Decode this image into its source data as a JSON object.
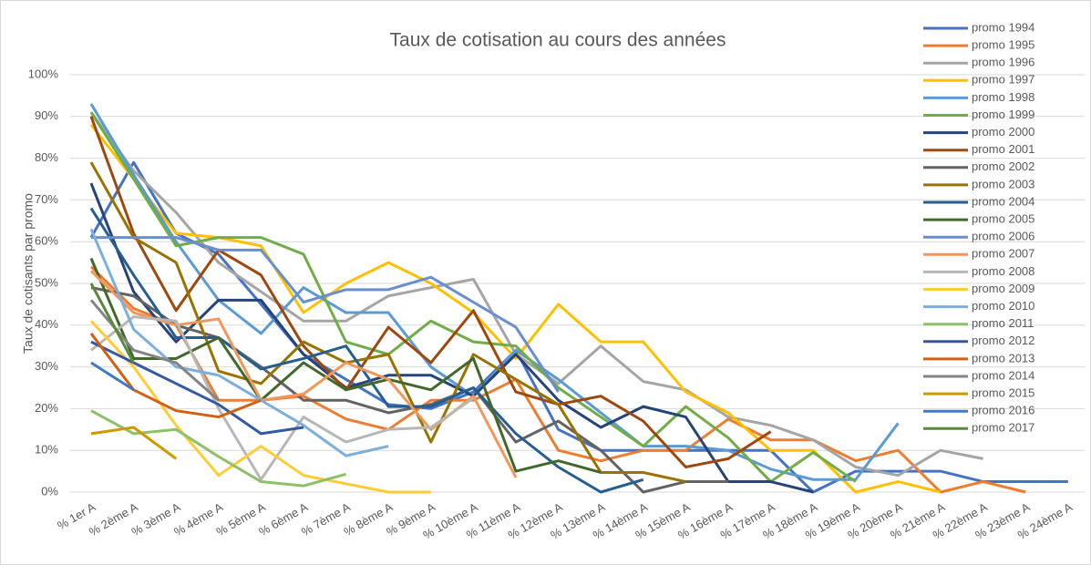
{
  "chart_data": {
    "type": "line",
    "title": "Taux de cotisation au cours des années",
    "y_label": "Taux de cotisants par promo",
    "categories": [
      "% 1er A",
      "% 2ème A",
      "% 3ème A",
      "% 4ème A",
      "% 5ème A",
      "% 6ème A",
      "% 7ème A",
      "% 8ème A",
      "% 9ème A",
      "% 10ème A",
      "% 11ème A",
      "% 12ème A",
      "% 13ème A",
      "% 14ème A",
      "% 15ème A",
      "% 16ème A",
      "% 17ème A",
      "% 18ème A",
      "% 19ème A",
      "% 20ème A",
      "% 21ème A",
      "% 22ème A",
      "% 23ème A",
      "% 24ème A"
    ],
    "ylim": [
      0,
      100
    ],
    "yticks": [
      {
        "value": 0,
        "label": "0%"
      },
      {
        "value": 10,
        "label": "10%"
      },
      {
        "value": 20,
        "label": "20%"
      },
      {
        "value": 30,
        "label": "30%"
      },
      {
        "value": 40,
        "label": "40%"
      },
      {
        "value": 50,
        "label": "50%"
      },
      {
        "value": 60,
        "label": "60%"
      },
      {
        "value": 70,
        "label": "70%"
      },
      {
        "value": 80,
        "label": "80%"
      },
      {
        "value": 90,
        "label": "90%"
      },
      {
        "value": 100,
        "label": "100%"
      }
    ],
    "grid": true,
    "legend": "right",
    "series": [
      {
        "name": "promo 1994",
        "color": "#4472c4",
        "values": [
          61,
          79,
          62,
          57,
          45,
          33,
          27,
          21,
          20,
          24,
          34,
          15,
          10,
          10,
          10,
          10,
          10,
          0,
          5,
          5,
          5,
          2.5,
          2.5,
          2.5
        ]
      },
      {
        "name": "promo 1995",
        "color": "#ed7d31",
        "values": [
          54,
          44,
          40,
          22,
          22,
          23,
          17.5,
          15,
          22,
          22,
          27,
          10,
          7.5,
          10,
          10,
          17.5,
          12.5,
          12.5,
          7.5,
          10,
          0,
          2.5,
          0,
          null
        ]
      },
      {
        "name": "promo 1996",
        "color": "#a5a5a5",
        "values": [
          91,
          77,
          67,
          55,
          48,
          41,
          41,
          47,
          49,
          51,
          33,
          26,
          35,
          26.5,
          24.5,
          18,
          16,
          12.5,
          6,
          4,
          10,
          8,
          null,
          null
        ]
      },
      {
        "name": "promo 1997",
        "color": "#ffc000",
        "values": [
          88,
          75,
          62,
          61,
          59,
          43,
          50,
          55,
          50,
          43,
          32,
          45,
          36,
          36,
          24,
          19,
          10,
          10,
          0,
          2.5,
          0,
          null,
          null,
          null
        ]
      },
      {
        "name": "promo 1998",
        "color": "#5b9bd5",
        "values": [
          93,
          76,
          60,
          46,
          38,
          49,
          43,
          43,
          30,
          23,
          34,
          27,
          19,
          11,
          11,
          10,
          5.5,
          3,
          3,
          16.5,
          null,
          null,
          null,
          null
        ]
      },
      {
        "name": "promo 1999",
        "color": "#70ad47",
        "values": [
          91,
          75,
          59,
          61,
          61,
          57,
          36,
          33,
          41,
          36,
          35,
          25,
          18,
          11,
          20.5,
          13,
          2.5,
          9.5,
          2.5,
          null,
          null,
          null,
          null,
          null
        ]
      },
      {
        "name": "promo 2000",
        "color": "#264478",
        "values": [
          74,
          48,
          36,
          46,
          46,
          33,
          25,
          28,
          28,
          23,
          33,
          22,
          15.5,
          20.5,
          18,
          2.5,
          2.5,
          0,
          null,
          null,
          null,
          null,
          null,
          null
        ]
      },
      {
        "name": "promo 2001",
        "color": "#9e480e",
        "values": [
          90,
          62,
          43.5,
          58,
          52,
          35,
          24.5,
          39.5,
          31,
          43.5,
          24,
          21,
          23,
          17,
          6,
          8,
          14.5,
          null,
          null,
          null,
          null,
          null,
          null,
          null
        ]
      },
      {
        "name": "promo 2002",
        "color": "#636363",
        "values": [
          49,
          47,
          40,
          37,
          30,
          22,
          22,
          19,
          21,
          25,
          12,
          17,
          10,
          0,
          2.5,
          2.5,
          null,
          null,
          null,
          null,
          null,
          null,
          null,
          null
        ]
      },
      {
        "name": "promo 2003",
        "color": "#997300",
        "values": [
          79,
          61,
          55,
          29,
          26,
          36,
          31,
          33,
          12,
          33,
          27,
          21,
          4.7,
          4.7,
          2.5,
          null,
          null,
          null,
          null,
          null,
          null,
          null,
          null,
          null
        ]
      },
      {
        "name": "promo 2004",
        "color": "#255e91",
        "values": [
          68,
          52,
          37,
          37,
          29.5,
          32,
          35,
          20.5,
          20.5,
          25,
          14,
          6,
          0,
          3,
          null,
          null,
          null,
          null,
          null,
          null,
          null,
          null,
          null,
          null
        ]
      },
      {
        "name": "promo 2005",
        "color": "#43682b",
        "values": [
          56,
          32,
          32,
          37,
          22,
          31,
          24.5,
          27,
          24.5,
          32,
          5,
          7.5,
          4.7,
          null,
          null,
          null,
          null,
          null,
          null,
          null,
          null,
          null,
          null,
          null
        ]
      },
      {
        "name": "promo 2006",
        "color": "#698ed0",
        "values": [
          61,
          61,
          61,
          58,
          58,
          45.5,
          48.5,
          48.5,
          51.5,
          45.5,
          39.5,
          24,
          null,
          null,
          null,
          null,
          null,
          null,
          null,
          null,
          null,
          null,
          null,
          null
        ]
      },
      {
        "name": "promo 2007",
        "color": "#f1975a",
        "values": [
          53,
          43,
          40,
          41.5,
          22,
          23.5,
          31,
          27,
          15,
          23,
          3.5,
          null,
          null,
          null,
          null,
          null,
          null,
          null,
          null,
          null,
          null,
          null,
          null,
          null
        ]
      },
      {
        "name": "promo 2008",
        "color": "#b7b7b7",
        "values": [
          34,
          42,
          41,
          20,
          3,
          18,
          12,
          15,
          15.5,
          22.5,
          null,
          null,
          null,
          null,
          null,
          null,
          null,
          null,
          null,
          null,
          null,
          null,
          null,
          null
        ]
      },
      {
        "name": "promo 2009",
        "color": "#ffcd33",
        "values": [
          41,
          30,
          16,
          4,
          11,
          4,
          2,
          0,
          0,
          null,
          null,
          null,
          null,
          null,
          null,
          null,
          null,
          null,
          null,
          null,
          null,
          null,
          null,
          null
        ]
      },
      {
        "name": "promo 2010",
        "color": "#7cafdd",
        "values": [
          63,
          39,
          30,
          28,
          22,
          16,
          8.7,
          11,
          null,
          null,
          null,
          null,
          null,
          null,
          null,
          null,
          null,
          null,
          null,
          null,
          null,
          null,
          null,
          null
        ]
      },
      {
        "name": "promo 2011",
        "color": "#8cc168",
        "values": [
          19.5,
          14,
          15,
          8.5,
          2.5,
          1.5,
          4.3,
          null,
          null,
          null,
          null,
          null,
          null,
          null,
          null,
          null,
          null,
          null,
          null,
          null,
          null,
          null,
          null,
          null
        ]
      },
      {
        "name": "promo 2012",
        "color": "#335aa1",
        "values": [
          36,
          31,
          26,
          21,
          14,
          15.5,
          null,
          null,
          null,
          null,
          null,
          null,
          null,
          null,
          null,
          null,
          null,
          null,
          null,
          null,
          null,
          null,
          null,
          null
        ]
      },
      {
        "name": "promo 2013",
        "color": "#d26012",
        "values": [
          38,
          24.5,
          19.5,
          18,
          22,
          null,
          null,
          null,
          null,
          null,
          null,
          null,
          null,
          null,
          null,
          null,
          null,
          null,
          null,
          null,
          null,
          null,
          null,
          null
        ]
      },
      {
        "name": "promo 2014",
        "color": "#848484",
        "values": [
          46,
          34,
          31,
          22,
          null,
          null,
          null,
          null,
          null,
          null,
          null,
          null,
          null,
          null,
          null,
          null,
          null,
          null,
          null,
          null,
          null,
          null,
          null,
          null
        ]
      },
      {
        "name": "promo 2015",
        "color": "#cc9a00",
        "values": [
          14,
          15.5,
          8,
          null,
          null,
          null,
          null,
          null,
          null,
          null,
          null,
          null,
          null,
          null,
          null,
          null,
          null,
          null,
          null,
          null,
          null,
          null,
          null,
          null
        ]
      },
      {
        "name": "promo 2016",
        "color": "#3f7cbf",
        "values": [
          31,
          24.5,
          null,
          null,
          null,
          null,
          null,
          null,
          null,
          null,
          null,
          null,
          null,
          null,
          null,
          null,
          null,
          null,
          null,
          null,
          null,
          null,
          null,
          null
        ]
      },
      {
        "name": "promo 2017",
        "color": "#5a8a39",
        "values": [
          50,
          31,
          null,
          null,
          null,
          null,
          null,
          null,
          null,
          null,
          null,
          null,
          null,
          null,
          null,
          null,
          null,
          null,
          null,
          null,
          null,
          null,
          null,
          null
        ]
      }
    ]
  }
}
